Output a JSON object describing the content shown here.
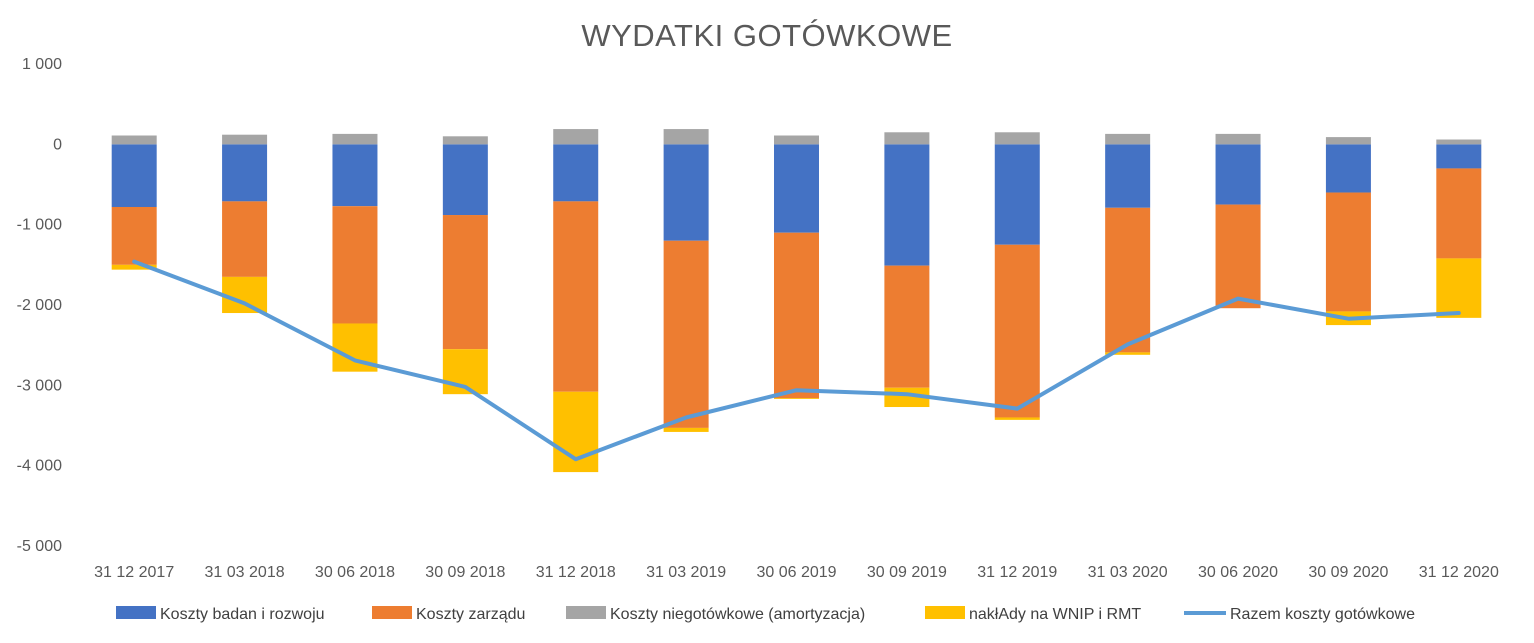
{
  "chart_data": {
    "type": "bar",
    "stacked": true,
    "title": "WYDATKI GOTÓWKOWE",
    "xlabel": "",
    "ylabel": "",
    "ylim": [
      -5000,
      1000
    ],
    "y_ticks": [
      1000,
      0,
      -1000,
      -2000,
      -3000,
      -4000,
      -5000
    ],
    "y_tick_labels": [
      "1 000",
      "0",
      "-1 000",
      "-2 000",
      "-3 000",
      "-4 000",
      "-5 000"
    ],
    "grid": false,
    "legend_position": "bottom",
    "categories": [
      "31 12 2017",
      "31 03 2018",
      "30 06 2018",
      "30 09 2018",
      "31 12 2018",
      "31 03 2019",
      "30 06 2019",
      "30 09 2019",
      "31 12 2019",
      "31 03 2020",
      "30 06 2020",
      "30 09 2020",
      "31 12 2020"
    ],
    "series": [
      {
        "name": "Koszty badan i rozwoju",
        "kind": "bar",
        "color": "#4472C4",
        "values": [
          -780,
          -710,
          -770,
          -880,
          -710,
          -1200,
          -1100,
          -1510,
          -1250,
          -790,
          -750,
          -600,
          -300
        ]
      },
      {
        "name": "Koszty zarządu",
        "kind": "bar",
        "color": "#ED7D31",
        "values": [
          -720,
          -940,
          -1460,
          -1670,
          -2370,
          -2330,
          -2060,
          -1520,
          -2150,
          -1800,
          -1290,
          -1480,
          -1120
        ]
      },
      {
        "name": "Koszty niegotówkowe (amortyzacja)",
        "kind": "bar",
        "color": "#A5A5A5",
        "values": [
          110,
          120,
          130,
          100,
          190,
          190,
          110,
          150,
          150,
          130,
          130,
          90,
          60
        ]
      },
      {
        "name": "nakłAdy na WNIP i RMT",
        "kind": "bar",
        "color": "#FFC000",
        "values": [
          -60,
          -450,
          -600,
          -560,
          -1000,
          -50,
          -10,
          -240,
          -30,
          -30,
          0,
          -170,
          -740
        ]
      },
      {
        "name": "Razem koszty gotówkowe",
        "kind": "line",
        "color": "#5B9BD5",
        "values": [
          -1460,
          -1980,
          -2690,
          -3020,
          -3920,
          -3400,
          -3060,
          -3110,
          -3290,
          -2490,
          -1920,
          -2170,
          -2100
        ]
      }
    ]
  }
}
